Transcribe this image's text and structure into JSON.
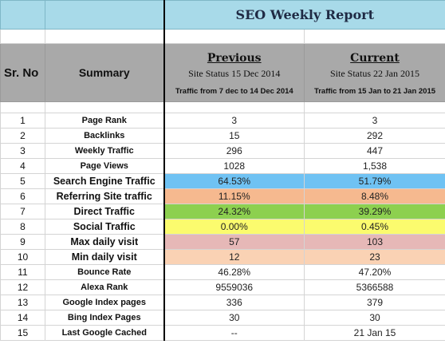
{
  "title": "SEO Weekly Report",
  "headers": {
    "sr_no": "Sr. No",
    "summary": "Summary",
    "previous": {
      "title": "Previous",
      "status": "Site Status 15 Dec 2014",
      "range": "Traffic from 7 dec to 14 Dec 2014"
    },
    "current": {
      "title": "Current",
      "status": "Site Status 22 Jan 2015",
      "range": "Traffic from 15 Jan to 21 Jan 2015"
    }
  },
  "colors": {
    "title_bg": "#a8dae9",
    "header_bg": "#a9a9a9",
    "search_engine": "#6fc2f3",
    "referring": "#f6b98f",
    "direct": "#8dd04f",
    "social": "#fbfb6e",
    "max_daily": "#e6b8b7",
    "min_daily": "#fad2b4"
  },
  "rows": [
    {
      "no": "1",
      "label": "Page Rank",
      "prev": "3",
      "curr": "3"
    },
    {
      "no": "2",
      "label": "Backlinks",
      "prev": "15",
      "curr": "292"
    },
    {
      "no": "3",
      "label": "Weekly Traffic",
      "prev": "296",
      "curr": "447"
    },
    {
      "no": "4",
      "label": "Page Views",
      "prev": "1028",
      "curr": "1,538"
    },
    {
      "no": "5",
      "label": "Search Engine Traffic",
      "prev": "64.53%",
      "curr": "51.79%"
    },
    {
      "no": "6",
      "label": "Referring Site traffic",
      "prev": "11.15%",
      "curr": "8.48%"
    },
    {
      "no": "7",
      "label": "Direct Traffic",
      "prev": "24.32%",
      "curr": "39.29%"
    },
    {
      "no": "8",
      "label": "Social Traffic",
      "prev": "0.00%",
      "curr": "0.45%"
    },
    {
      "no": "9",
      "label": "Max daily visit",
      "prev": "57",
      "curr": "103"
    },
    {
      "no": "10",
      "label": "Min daily visit",
      "prev": "12",
      "curr": "23"
    },
    {
      "no": "11",
      "label": "Bounce Rate",
      "prev": "46.28%",
      "curr": "47.20%"
    },
    {
      "no": "12",
      "label": "Alexa Rank",
      "prev": "9559036",
      "curr": "5366588"
    },
    {
      "no": "13",
      "label": "Google Index pages",
      "prev": "336",
      "curr": "379"
    },
    {
      "no": "14",
      "label": "Bing Index Pages",
      "prev": "30",
      "curr": "30"
    },
    {
      "no": "15",
      "label": "Last Google Cached",
      "prev": "--",
      "curr": "21 Jan 15"
    }
  ]
}
